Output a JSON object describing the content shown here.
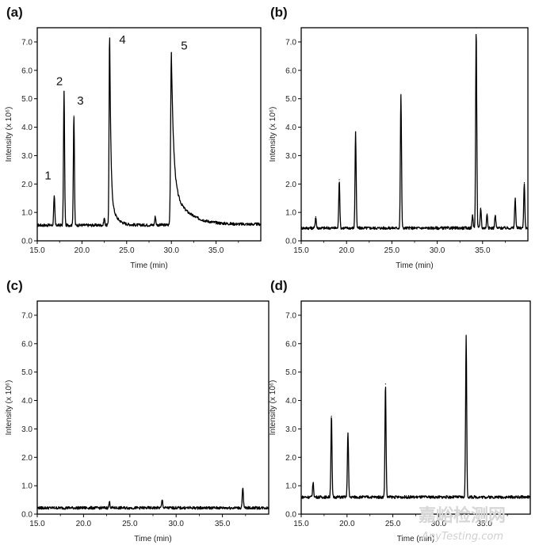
{
  "watermark": {
    "cjk": "嘉峪检测网",
    "url": "AnyTesting.com"
  },
  "chart_data": [
    {
      "type": "line",
      "panel_label": "(a)",
      "xlabel": "Time (min)",
      "ylabel": "Intensity (x 10⁶)",
      "xlim": [
        15.0,
        40.0
      ],
      "ylim": [
        0.0,
        7.5
      ],
      "xticks": [
        "15.0",
        "20.0",
        "25.0",
        "30.0",
        "35.0"
      ],
      "yticks": [
        "0.0",
        "1.0",
        "2.0",
        "3.0",
        "4.0",
        "5.0",
        "6.0",
        "7.0"
      ],
      "baseline": 0.55,
      "peaks": [
        {
          "x": 16.9,
          "height": 1.55,
          "label": "1"
        },
        {
          "x": 18.0,
          "height": 5.25,
          "label": "2"
        },
        {
          "x": 19.1,
          "height": 4.4,
          "label": "3"
        },
        {
          "x": 22.5,
          "height": 0.8
        },
        {
          "x": 23.1,
          "height": 7.5,
          "label": "4"
        },
        {
          "x": 28.2,
          "height": 0.85
        },
        {
          "x": 30.0,
          "height": 6.62,
          "label": "5"
        }
      ]
    },
    {
      "type": "line",
      "panel_label": "(b)",
      "xlabel": "Time (min)",
      "ylabel": "Intensity (x 10⁶)",
      "xlim": [
        15.0,
        40.0
      ],
      "ylim": [
        0.0,
        7.5
      ],
      "xticks": [
        "15.0",
        "20.0",
        "25.0",
        "30.0",
        "35.0"
      ],
      "yticks": [
        "0.0",
        "1.0",
        "2.0",
        "3.0",
        "4.0",
        "5.0",
        "6.0",
        "7.0"
      ],
      "baseline": 0.45,
      "peaks": [
        {
          "x": 16.6,
          "height": 0.85
        },
        {
          "x": 19.2,
          "height": 2.15
        },
        {
          "x": 21.0,
          "height": 3.82
        },
        {
          "x": 26.0,
          "height": 5.15
        },
        {
          "x": 33.9,
          "height": 0.9
        },
        {
          "x": 34.3,
          "height": 7.5
        },
        {
          "x": 34.8,
          "height": 1.15
        },
        {
          "x": 35.5,
          "height": 0.95
        },
        {
          "x": 36.4,
          "height": 0.9
        },
        {
          "x": 38.6,
          "height": 1.5
        },
        {
          "x": 39.6,
          "height": 2.05
        }
      ]
    },
    {
      "type": "line",
      "panel_label": "(c)",
      "xlabel": "Time (min)",
      "ylabel": "Intensity (x 10⁶)",
      "xlim": [
        15.0,
        40.0
      ],
      "ylim": [
        0.0,
        7.5
      ],
      "xticks": [
        "15.0",
        "20.0",
        "25.0",
        "30.0",
        "35.0"
      ],
      "yticks": [
        "0.0",
        "1.0",
        "2.0",
        "3.0",
        "4.0",
        "5.0",
        "6.0",
        "7.0"
      ],
      "baseline": 0.22,
      "peaks": [
        {
          "x": 22.8,
          "height": 0.42
        },
        {
          "x": 28.5,
          "height": 0.5
        },
        {
          "x": 37.2,
          "height": 0.9
        }
      ]
    },
    {
      "type": "line",
      "panel_label": "(d)",
      "xlabel": "Time (min)",
      "ylabel": "Intensity (x 10⁶)",
      "xlim": [
        15.0,
        40.0
      ],
      "ylim": [
        0.0,
        7.5
      ],
      "xticks": [
        "15.0",
        "20.0",
        "25.0",
        "30.0",
        "35.0"
      ],
      "yticks": [
        "0.0",
        "1.0",
        "2.0",
        "3.0",
        "4.0",
        "5.0",
        "6.0",
        "7.0"
      ],
      "baseline": 0.6,
      "peaks": [
        {
          "x": 16.3,
          "height": 1.1
        },
        {
          "x": 18.3,
          "height": 3.45
        },
        {
          "x": 20.1,
          "height": 2.85
        },
        {
          "x": 24.2,
          "height": 4.58
        },
        {
          "x": 33.0,
          "height": 6.3
        }
      ]
    }
  ]
}
